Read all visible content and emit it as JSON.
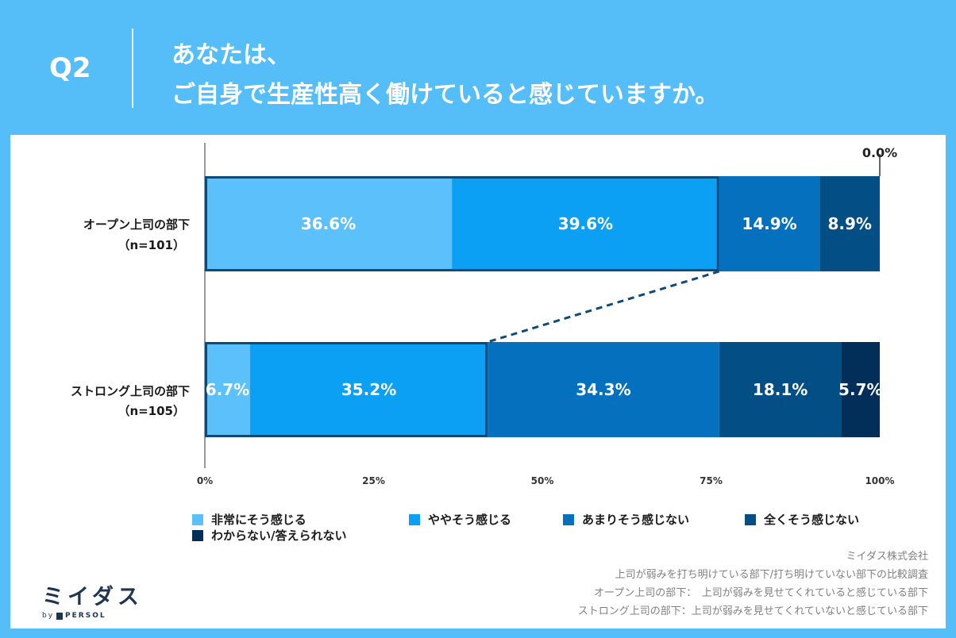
{
  "header": {
    "q_label": "Q2",
    "title_line1": "あなたは、",
    "title_line2": "ご自身で生産性高く働けていると感じていますか。"
  },
  "chart_data": {
    "type": "bar",
    "orientation": "horizontal",
    "stacked": true,
    "title": "あなたは、ご自身で生産性高く働けていると感じていますか。",
    "categories": [
      {
        "name": "オープン上司の部下",
        "n": "（n=101）"
      },
      {
        "name": "ストロング上司の部下",
        "n": "（n=105）"
      }
    ],
    "series": [
      {
        "name": "非常にそう感じる",
        "color": "#5cc0fb",
        "values": [
          36.6,
          6.7
        ],
        "labels": [
          "36.6%",
          "6.7%"
        ]
      },
      {
        "name": "ややそう感じる",
        "color": "#0ca0f5",
        "values": [
          39.6,
          35.2
        ],
        "labels": [
          "39.6%",
          "35.2%"
        ]
      },
      {
        "name": "あまりそう感じない",
        "color": "#0571be",
        "values": [
          14.9,
          34.3
        ],
        "labels": [
          "14.9%",
          "34.3%"
        ]
      },
      {
        "name": "全くそう感じない",
        "color": "#034e84",
        "values": [
          8.9,
          18.1
        ],
        "labels": [
          "8.9%",
          "18.1%"
        ]
      },
      {
        "name": "わからない/答えられない",
        "color": "#022e5a",
        "values": [
          0.0,
          5.7
        ],
        "labels": [
          "0.0%",
          "5.7%"
        ]
      }
    ],
    "x_ticks": [
      "0%",
      "25%",
      "50%",
      "75%",
      "100%"
    ],
    "xlim": [
      0,
      100
    ],
    "highlight": "非常にそう感じる＋ややそう感じる (outlined, connected by dashed line)"
  },
  "footnotes": [
    "ミイダス株式会社",
    "上司が弱みを打ち明けている部下/打ち明けていない部下の比較調査",
    "オープン上司の部下：　上司が弱みを見せてくれていると感じている部下",
    "ストロング上司の部下：上司が弱みを見せてくれていないと感じている部下"
  ],
  "logo": {
    "main": "ミイダス",
    "by": "by",
    "brand": "PERSOL"
  }
}
